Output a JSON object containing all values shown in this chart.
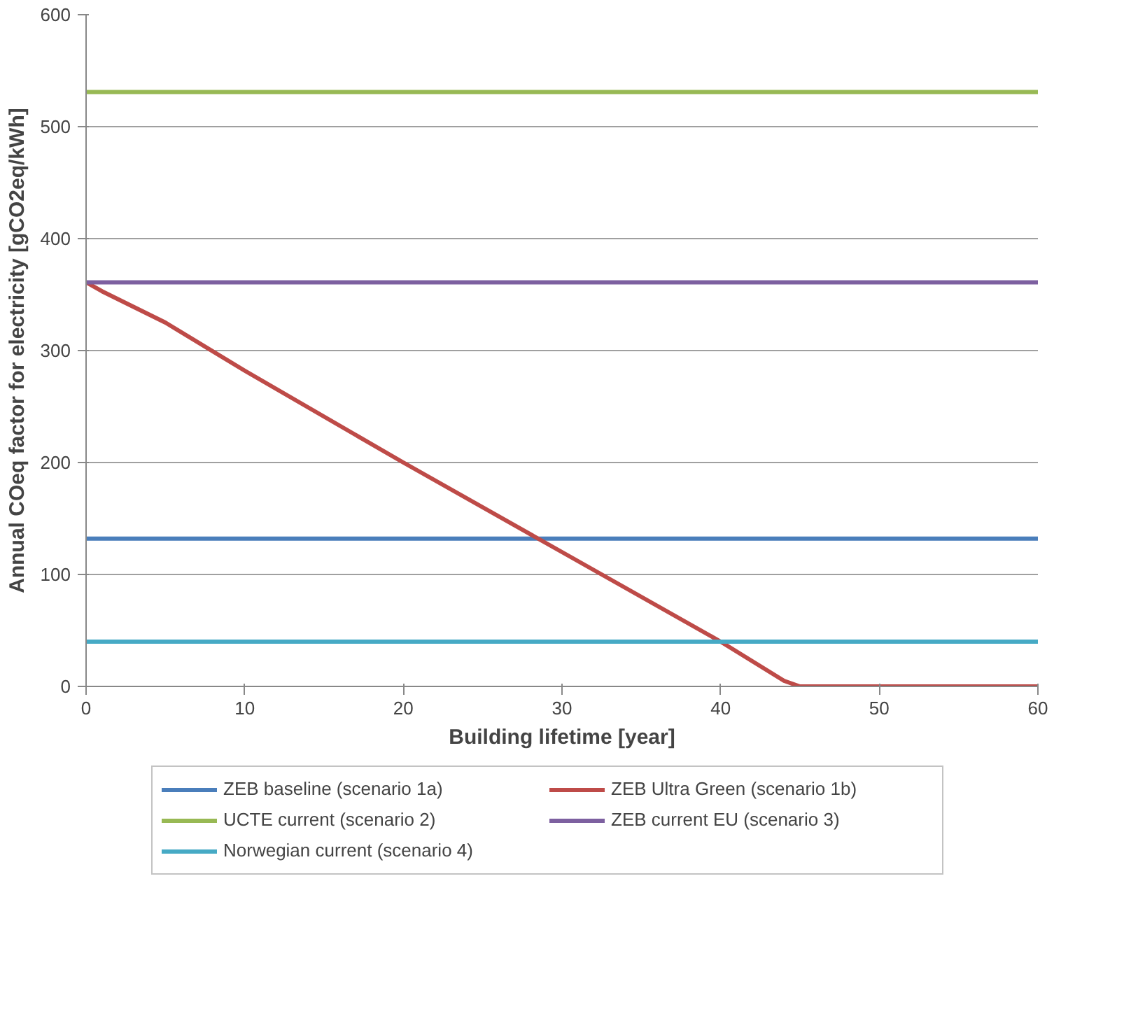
{
  "chart_data": {
    "type": "line",
    "xlabel": "Building lifetime [year]",
    "ylabel": "Annual COeq factor for electricity [gCO2eq/kWh]",
    "xlim": [
      0,
      60
    ],
    "xticks": [
      0,
      10,
      20,
      30,
      40,
      50,
      60
    ],
    "ylim": [
      0,
      600
    ],
    "yticks": [
      0,
      100,
      200,
      300,
      400,
      500,
      600
    ],
    "grid": "y",
    "legend": "bottom",
    "marker": "none",
    "line_style": "solid",
    "series": [
      {
        "name": "ZEB baseline (scenario 1a)",
        "color": "#4a7ebb",
        "x": [
          0,
          60
        ],
        "values": [
          132,
          132
        ]
      },
      {
        "name": "ZEB Ultra Green (scenario 1b)",
        "color": "#be4b48",
        "x": [
          0,
          1,
          5,
          10,
          20,
          30,
          40,
          44,
          45,
          60
        ],
        "values": [
          361,
          353,
          325,
          282,
          200,
          120,
          40,
          5,
          0,
          0
        ]
      },
      {
        "name": "UCTE current (scenario 2)",
        "color": "#98b954",
        "x": [
          0,
          60
        ],
        "values": [
          531,
          531
        ]
      },
      {
        "name": "ZEB current EU (scenario 3)",
        "color": "#7d60a0",
        "x": [
          0,
          60
        ],
        "values": [
          361,
          361
        ]
      },
      {
        "name": "Norwegian current (scenario 4)",
        "color": "#46aac5",
        "x": [
          0,
          60
        ],
        "values": [
          40,
          40
        ]
      }
    ]
  }
}
